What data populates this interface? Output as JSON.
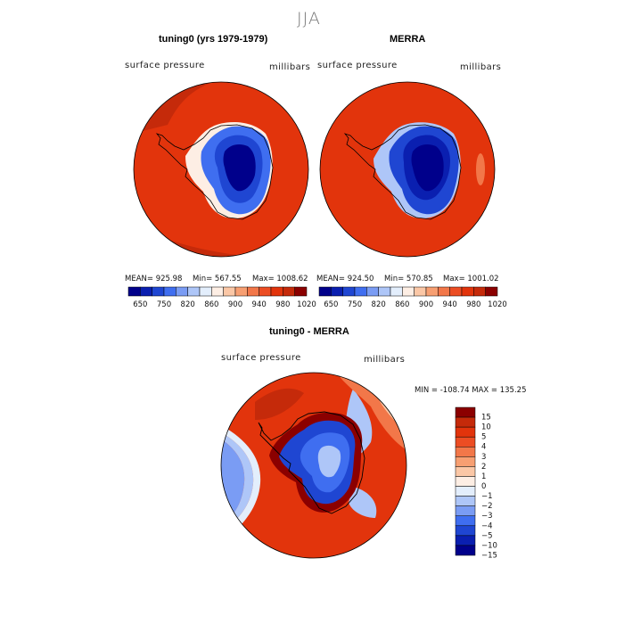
{
  "figure": {
    "title": "JJA"
  },
  "chart_data": [
    {
      "type": "heatmap",
      "title": "tuning0 (yrs 1979-1979)",
      "variable": "surface pressure",
      "units": "millibars",
      "stats": {
        "mean_text": "MEAN= 925.98",
        "min_text": "Min= 567.55",
        "max_text": "Max= 1008.62"
      },
      "colorbar": {
        "tick_labels": [
          "650",
          "750",
          "820",
          "860",
          "900",
          "940",
          "980",
          "1020"
        ],
        "colors": [
          "#00008b",
          "#0a1fb0",
          "#1f46d2",
          "#3f6ef0",
          "#7a9cf4",
          "#aec6f8",
          "#e3eefc",
          "#fdeee4",
          "#fbc7a6",
          "#f79f72",
          "#f27749",
          "#ec4d23",
          "#e2340c",
          "#c52a0a",
          "#8b0000"
        ]
      }
    },
    {
      "type": "heatmap",
      "title": "MERRA",
      "variable": "surface pressure",
      "units": "millibars",
      "stats": {
        "mean_text": "MEAN= 924.50",
        "min_text": "Min= 570.85",
        "max_text": "Max= 1001.02"
      },
      "colorbar": {
        "tick_labels": [
          "650",
          "750",
          "820",
          "860",
          "900",
          "940",
          "980",
          "1020"
        ],
        "colors": [
          "#00008b",
          "#0a1fb0",
          "#1f46d2",
          "#3f6ef0",
          "#7a9cf4",
          "#aec6f8",
          "#e3eefc",
          "#fdeee4",
          "#fbc7a6",
          "#f79f72",
          "#f27749",
          "#ec4d23",
          "#e2340c",
          "#c52a0a",
          "#8b0000"
        ]
      }
    },
    {
      "type": "heatmap",
      "title": "tuning0 - MERRA",
      "variable": "surface pressure",
      "units": "millibars",
      "stats": {
        "range_text": "MIN = -108.74  MAX = 135.25"
      },
      "colorbar": {
        "orientation": "vertical",
        "tick_labels": [
          "15",
          "10",
          "5",
          "4",
          "3",
          "2",
          "1",
          "0",
          "−1",
          "−2",
          "−3",
          "−4",
          "−5",
          "−10",
          "−15"
        ],
        "colors": [
          "#8b0000",
          "#c52a0a",
          "#e2340c",
          "#ec4d23",
          "#f27749",
          "#f79f72",
          "#fbc7a6",
          "#fdeee4",
          "#e3eefc",
          "#aec6f8",
          "#7a9cf4",
          "#3f6ef0",
          "#1f46d2",
          "#0a1fb0",
          "#00008b"
        ]
      }
    }
  ],
  "colors": {
    "high_red": "#e2340c",
    "dark_red": "#c52a0a",
    "deep_blue": "#00008b",
    "mid_blue": "#1f46d2"
  }
}
